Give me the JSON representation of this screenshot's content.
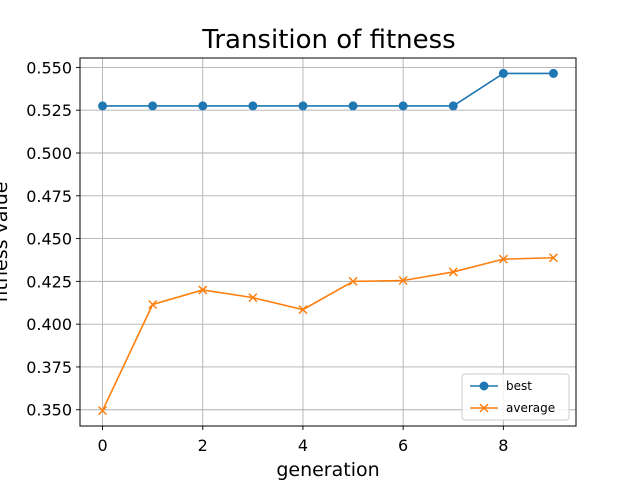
{
  "chart_data": {
    "type": "line",
    "title": "Transition of fitness",
    "xlabel": "generation",
    "ylabel": "fitness value",
    "xlim": [
      -0.45,
      9.45
    ],
    "ylim": [
      0.3405,
      0.5555
    ],
    "xticks": [
      0,
      2,
      4,
      6,
      8
    ],
    "xtick_labels": [
      "0",
      "2",
      "4",
      "6",
      "8"
    ],
    "yticks": [
      0.35,
      0.375,
      0.4,
      0.425,
      0.45,
      0.475,
      0.5,
      0.525,
      0.55
    ],
    "ytick_labels": [
      "0.350",
      "0.375",
      "0.400",
      "0.425",
      "0.450",
      "0.475",
      "0.500",
      "0.525",
      "0.550"
    ],
    "grid": true,
    "legend_position": "lower-right",
    "x": [
      0,
      1,
      2,
      3,
      4,
      5,
      6,
      7,
      8,
      9
    ],
    "series": [
      {
        "name": "best",
        "color": "#1f77b4",
        "marker": "circle",
        "values": [
          0.5275,
          0.5275,
          0.5275,
          0.5275,
          0.5275,
          0.5275,
          0.5275,
          0.5275,
          0.5465,
          0.5465
        ]
      },
      {
        "name": "average",
        "color": "#ff7f0e",
        "marker": "x",
        "values": [
          0.3495,
          0.4115,
          0.42,
          0.4155,
          0.4085,
          0.425,
          0.4255,
          0.4305,
          0.438,
          0.4388
        ]
      }
    ]
  }
}
